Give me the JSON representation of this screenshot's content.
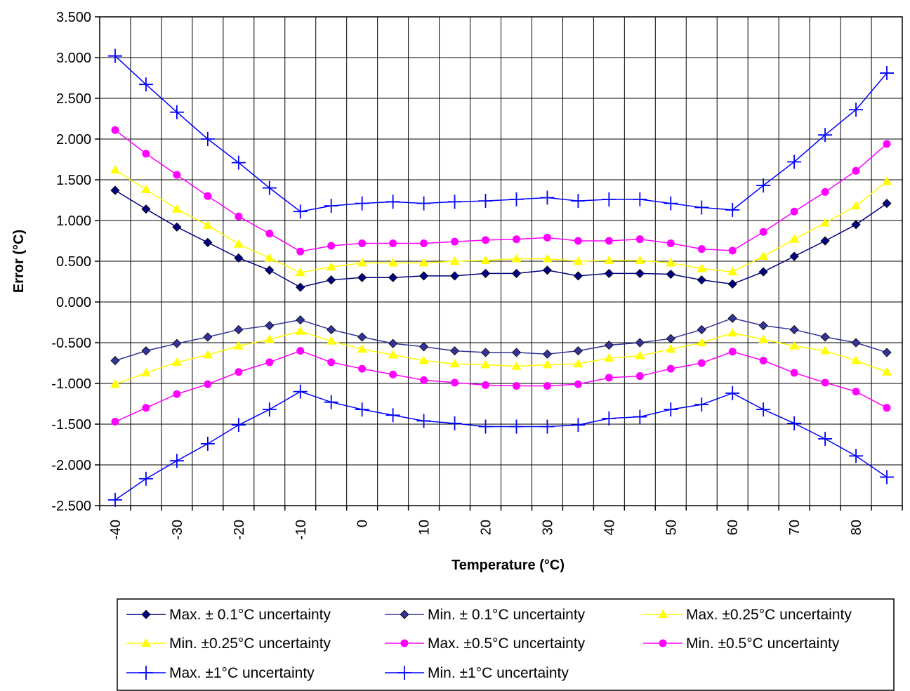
{
  "chart_data": {
    "type": "line",
    "title": "",
    "xlabel": "Temperature (°C)",
    "ylabel": "Error (°C)",
    "x": [
      -40,
      -35,
      -30,
      -25,
      -20,
      -15,
      -10,
      -5,
      0,
      5,
      10,
      15,
      20,
      25,
      30,
      35,
      40,
      45,
      50,
      55,
      60,
      65,
      70,
      75,
      80,
      85
    ],
    "x_tick_labels": [
      "-40",
      "-30",
      "-20",
      "-10",
      "0",
      "10",
      "20",
      "30",
      "40",
      "50",
      "60",
      "70",
      "80"
    ],
    "x_tick_values": [
      -40,
      -30,
      -20,
      -10,
      0,
      10,
      20,
      30,
      40,
      50,
      60,
      70,
      80
    ],
    "ylim": [
      -2.5,
      3.5
    ],
    "y_tick_labels": [
      "3.500",
      "3.000",
      "2.500",
      "2.000",
      "1.500",
      "1.000",
      "0.500",
      "0.000",
      "-0.500",
      "-1.000",
      "-1.500",
      "-2.000",
      "-2.500"
    ],
    "y_tick_values": [
      3.5,
      3.0,
      2.5,
      2.0,
      1.5,
      1.0,
      0.5,
      0.0,
      -0.5,
      -1.0,
      -1.5,
      -2.0,
      -2.5
    ],
    "grid": true,
    "legend_position": "bottom",
    "series": [
      {
        "name": "Max. ± 0.1°C uncertainty",
        "color": "#000080",
        "marker": "diamond",
        "values": [
          1.37,
          1.14,
          0.92,
          0.73,
          0.54,
          0.39,
          0.18,
          0.27,
          0.3,
          0.3,
          0.32,
          0.32,
          0.35,
          0.35,
          0.39,
          0.32,
          0.35,
          0.35,
          0.34,
          0.27,
          0.22,
          0.37,
          0.56,
          0.75,
          0.95,
          1.21
        ]
      },
      {
        "name": "Min. ± 0.1°C uncertainty",
        "color": "#333399",
        "marker": "diamond",
        "values": [
          -0.72,
          -0.6,
          -0.51,
          -0.43,
          -0.34,
          -0.29,
          -0.22,
          -0.34,
          -0.43,
          -0.51,
          -0.55,
          -0.6,
          -0.62,
          -0.62,
          -0.64,
          -0.6,
          -0.53,
          -0.5,
          -0.45,
          -0.34,
          -0.2,
          -0.29,
          -0.34,
          -0.43,
          -0.5,
          -0.62
        ]
      },
      {
        "name": "Max. ±0.25°C uncertainty",
        "color": "#FFFF00",
        "marker": "triangle",
        "values": [
          1.62,
          1.38,
          1.14,
          0.94,
          0.71,
          0.54,
          0.36,
          0.43,
          0.48,
          0.48,
          0.48,
          0.5,
          0.51,
          0.53,
          0.53,
          0.5,
          0.51,
          0.51,
          0.48,
          0.41,
          0.37,
          0.56,
          0.77,
          0.97,
          1.18,
          1.48
        ]
      },
      {
        "name": "Min. ±0.25°C uncertainty",
        "color": "#FFFF00",
        "marker": "triangle",
        "values": [
          -1.01,
          -0.87,
          -0.74,
          -0.65,
          -0.54,
          -0.46,
          -0.36,
          -0.48,
          -0.58,
          -0.65,
          -0.72,
          -0.76,
          -0.77,
          -0.79,
          -0.77,
          -0.76,
          -0.69,
          -0.66,
          -0.58,
          -0.5,
          -0.38,
          -0.46,
          -0.54,
          -0.6,
          -0.72,
          -0.86
        ]
      },
      {
        "name": "Max. ±0.5°C uncertainty",
        "color": "#FF00FF",
        "marker": "circle",
        "values": [
          2.11,
          1.82,
          1.56,
          1.3,
          1.05,
          0.84,
          0.62,
          0.69,
          0.72,
          0.72,
          0.72,
          0.74,
          0.76,
          0.77,
          0.79,
          0.75,
          0.75,
          0.77,
          0.72,
          0.65,
          0.63,
          0.86,
          1.11,
          1.35,
          1.61,
          1.94
        ]
      },
      {
        "name": "Min. ±0.5°C uncertainty",
        "color": "#FF00FF",
        "marker": "circle",
        "values": [
          -1.47,
          -1.3,
          -1.13,
          -1.01,
          -0.86,
          -0.74,
          -0.6,
          -0.74,
          -0.82,
          -0.89,
          -0.96,
          -0.99,
          -1.02,
          -1.03,
          -1.03,
          -1.01,
          -0.93,
          -0.91,
          -0.82,
          -0.75,
          -0.61,
          -0.72,
          -0.87,
          -0.99,
          -1.1,
          -1.3
        ]
      },
      {
        "name": "Max. ±1°C uncertainty",
        "color": "#0000FF",
        "marker": "plus",
        "values": [
          3.02,
          2.67,
          2.33,
          2.0,
          1.71,
          1.4,
          1.11,
          1.18,
          1.21,
          1.23,
          1.21,
          1.23,
          1.24,
          1.26,
          1.28,
          1.24,
          1.26,
          1.26,
          1.21,
          1.16,
          1.13,
          1.43,
          1.72,
          2.05,
          2.36,
          2.81
        ]
      },
      {
        "name": "Min. ±1°C uncertainty",
        "color": "#0000FF",
        "marker": "plus",
        "values": [
          -2.43,
          -2.17,
          -1.95,
          -1.74,
          -1.51,
          -1.32,
          -1.1,
          -1.23,
          -1.32,
          -1.39,
          -1.46,
          -1.49,
          -1.53,
          -1.53,
          -1.53,
          -1.51,
          -1.43,
          -1.41,
          -1.32,
          -1.26,
          -1.12,
          -1.32,
          -1.49,
          -1.68,
          -1.89,
          -2.15
        ]
      }
    ]
  }
}
